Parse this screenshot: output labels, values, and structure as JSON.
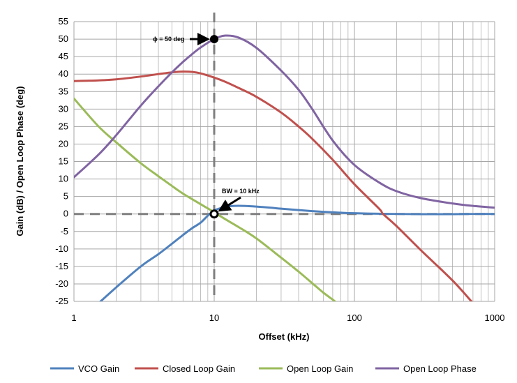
{
  "chart_data": {
    "type": "line",
    "title": "",
    "xlabel": "Offset (kHz)",
    "ylabel": "Gain  (dB)  / Open Loop Phase (deg)",
    "x_scale": "log",
    "xlim": [
      1,
      1000
    ],
    "ylim": [
      -25,
      55
    ],
    "x_ticks": [
      "1",
      "10",
      "100",
      "1000"
    ],
    "y_ticks": [
      "-25",
      "-20",
      "-15",
      "-10",
      "-5",
      "0",
      "5",
      "10",
      "15",
      "20",
      "25",
      "30",
      "35",
      "40",
      "45",
      "50",
      "55"
    ],
    "grid": true,
    "legend": "bottom",
    "series": [
      {
        "name": "VCO Gain",
        "color": "#4f81bd",
        "x": [
          1.5,
          2,
          3,
          4,
          5,
          6,
          7,
          8,
          9,
          10,
          11,
          12,
          14,
          16,
          20,
          25,
          30,
          40,
          60,
          80,
          100,
          150,
          200,
          300,
          500,
          700,
          1000
        ],
        "y": [
          -25.5,
          -21,
          -15,
          -11.5,
          -8.5,
          -6,
          -4,
          -2.5,
          -0.5,
          1,
          1.6,
          2.1,
          2.3,
          2.3,
          2.1,
          1.8,
          1.5,
          1.1,
          0.6,
          0.35,
          0.2,
          0.05,
          0,
          -0.05,
          -0.05,
          0,
          0
        ]
      },
      {
        "name": "Closed Loop Gain",
        "color": "#c0504d",
        "x": [
          1,
          1.5,
          2,
          3,
          4,
          5,
          6,
          7,
          8,
          10,
          12,
          15,
          20,
          30,
          40,
          50,
          70,
          100,
          150,
          160,
          200,
          300,
          500,
          700
        ],
        "y": [
          38,
          38.2,
          38.5,
          39.3,
          40,
          40.5,
          40.7,
          40.6,
          40.2,
          39,
          37.8,
          36,
          33.5,
          29,
          25,
          21.5,
          15.5,
          8.5,
          1.5,
          0,
          -3.5,
          -10.5,
          -19,
          -25.5
        ]
      },
      {
        "name": "Open Loop Gain",
        "color": "#9bbb59",
        "x": [
          1,
          1.5,
          2,
          3,
          4,
          5,
          6,
          8,
          10,
          12,
          15,
          20,
          30,
          40,
          50,
          60,
          70,
          75
        ],
        "y": [
          33,
          25,
          20.5,
          14.5,
          10.8,
          8,
          5.8,
          2.8,
          0.5,
          -1.5,
          -3.8,
          -7,
          -12.5,
          -16.5,
          -19.8,
          -22.5,
          -24.5,
          -25.5
        ]
      },
      {
        "name": "Open Loop Phase",
        "color": "#8064a2",
        "x": [
          1,
          1.5,
          2,
          3,
          4,
          5,
          6,
          7,
          8,
          10,
          12,
          15,
          20,
          30,
          40,
          50,
          70,
          100,
          150,
          200,
          300,
          500,
          700,
          1000
        ],
        "y": [
          10.5,
          17,
          22.5,
          31,
          36.5,
          40.5,
          43.5,
          45.8,
          47.6,
          50,
          51,
          50.4,
          47.5,
          41,
          35.5,
          30,
          21,
          14,
          9,
          6.5,
          4.5,
          3,
          2.3,
          1.8
        ]
      }
    ],
    "annotations": [
      {
        "text": "ϕ = 50 deg",
        "x": 10,
        "y": 50
      },
      {
        "text": "BW = 10 kHz",
        "x": 10,
        "y": 0
      }
    ],
    "reference_lines": [
      {
        "orientation": "vertical",
        "value": 10,
        "style": "dashed",
        "color": "#7f7f7f"
      },
      {
        "orientation": "horizontal",
        "value": 0,
        "style": "dashed",
        "color": "#7f7f7f"
      }
    ]
  }
}
